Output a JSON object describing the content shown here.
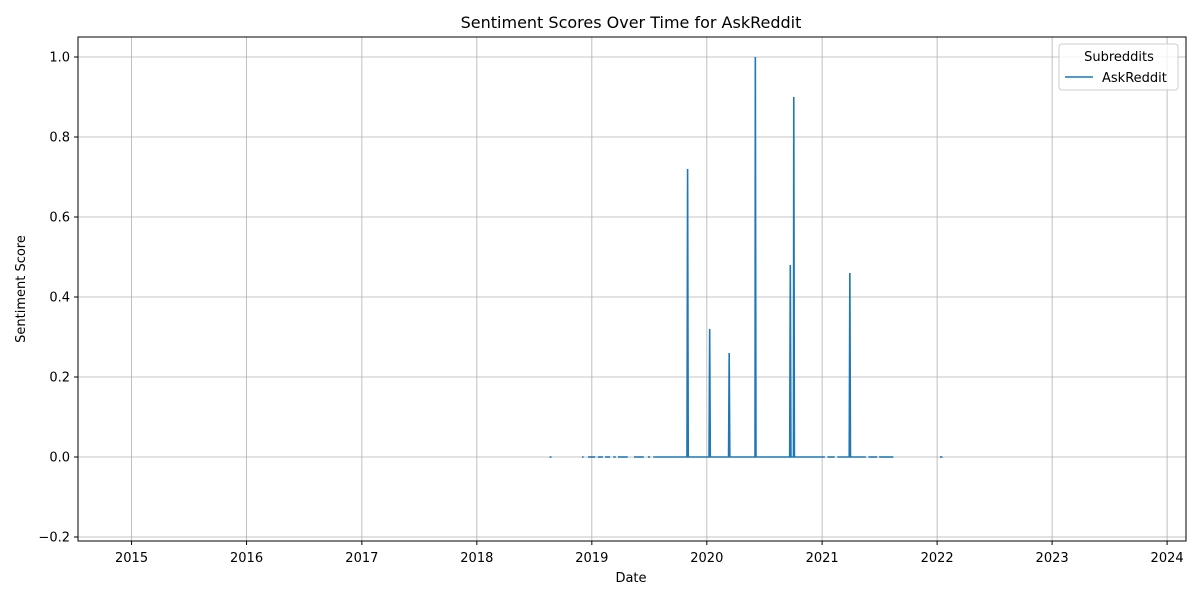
{
  "chart_data": {
    "type": "line",
    "title": "Sentiment Scores Over Time for AskReddit",
    "xlabel": "Date",
    "ylabel": "Sentiment Score",
    "xlim": [
      "2014-07-15",
      "2024-03-01"
    ],
    "ylim": [
      -0.21,
      1.05
    ],
    "x_ticks": [
      "2015",
      "2016",
      "2017",
      "2018",
      "2019",
      "2020",
      "2021",
      "2022",
      "2023",
      "2024"
    ],
    "y_ticks": [
      "−0.2",
      "0.0",
      "0.2",
      "0.4",
      "0.6",
      "0.8",
      "1.0"
    ],
    "grid": true,
    "legend": {
      "title": "Subreddits",
      "placement": "top-right"
    },
    "series": [
      {
        "name": "AskReddit",
        "color": "#1f77b4",
        "segments": [
          [
            [
              "2018-08-20",
              0
            ],
            [
              "2018-08-26",
              0
            ]
          ],
          [
            [
              "2018-12-01",
              0
            ],
            [
              "2018-12-06",
              0
            ]
          ],
          [
            [
              "2018-12-20",
              0
            ],
            [
              "2019-01-12",
              0
            ]
          ],
          [
            [
              "2019-01-20",
              0
            ],
            [
              "2019-02-05",
              0
            ]
          ],
          [
            [
              "2019-02-12",
              0
            ],
            [
              "2019-02-28",
              0
            ]
          ],
          [
            [
              "2019-03-10",
              0
            ],
            [
              "2019-03-18",
              0
            ]
          ],
          [
            [
              "2019-03-25",
              0
            ],
            [
              "2019-04-25",
              0
            ]
          ],
          [
            [
              "2019-05-15",
              0
            ],
            [
              "2019-06-15",
              0
            ]
          ],
          [
            [
              "2019-06-28",
              0
            ],
            [
              "2019-07-05",
              0
            ]
          ],
          [
            [
              "2019-07-15",
              0
            ],
            [
              "2019-10-30",
              0
            ],
            [
              "2019-11-01",
              0.72
            ],
            [
              "2019-11-03",
              0
            ],
            [
              "2020-01-08",
              0
            ],
            [
              "2020-01-10",
              0.32
            ],
            [
              "2020-01-12",
              0
            ],
            [
              "2020-03-10",
              0
            ],
            [
              "2020-03-12",
              0.26
            ],
            [
              "2020-03-14",
              0
            ],
            [
              "2020-06-02",
              0
            ],
            [
              "2020-06-03",
              1.0
            ],
            [
              "2020-06-05",
              0
            ],
            [
              "2020-09-20",
              0
            ],
            [
              "2020-09-22",
              0.48
            ],
            [
              "2020-09-24",
              0
            ],
            [
              "2020-10-02",
              0
            ],
            [
              "2020-10-03",
              0.9
            ],
            [
              "2020-10-05",
              0
            ],
            [
              "2021-01-10",
              0
            ]
          ],
          [
            [
              "2021-01-18",
              0
            ],
            [
              "2021-02-10",
              0
            ]
          ],
          [
            [
              "2021-02-18",
              0
            ],
            [
              "2021-03-28",
              0
            ],
            [
              "2021-03-30",
              0.46
            ],
            [
              "2021-04-01",
              0
            ],
            [
              "2021-05-20",
              0
            ]
          ],
          [
            [
              "2021-05-28",
              0
            ],
            [
              "2021-06-25",
              0
            ]
          ],
          [
            [
              "2021-07-01",
              0
            ],
            [
              "2021-08-15",
              0
            ]
          ],
          [
            [
              "2022-01-10",
              0
            ],
            [
              "2022-01-18",
              0
            ]
          ]
        ]
      }
    ]
  }
}
